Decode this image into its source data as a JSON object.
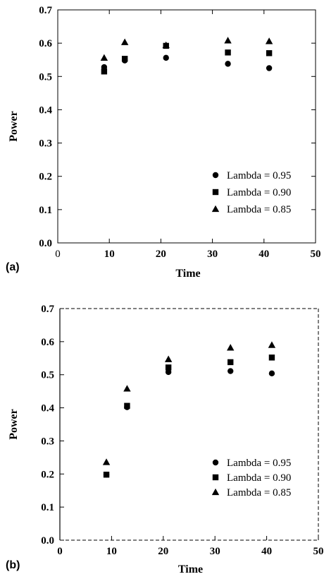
{
  "chart_data": [
    {
      "type": "scatter",
      "panel_label": "(a)",
      "xlabel": "Time",
      "ylabel": "Power",
      "xlim": [
        0,
        50
      ],
      "ylim": [
        0.0,
        0.7
      ],
      "x_ticks": [
        "0",
        "10",
        "20",
        "30",
        "40",
        "50"
      ],
      "y_ticks": [
        "0.0",
        "0.1",
        "0.2",
        "0.3",
        "0.4",
        "0.5",
        "0.6",
        "0.7"
      ],
      "legend_position": "bottom-right",
      "series": [
        {
          "name": "Lambda = 0.95",
          "marker": "circle",
          "x": [
            9,
            13,
            21,
            33,
            41
          ],
          "y": [
            0.528,
            0.548,
            0.556,
            0.538,
            0.525
          ]
        },
        {
          "name": "Lambda = 0.90",
          "marker": "square",
          "x": [
            9,
            13,
            21,
            33,
            41
          ],
          "y": [
            0.515,
            0.553,
            0.592,
            0.572,
            0.57
          ]
        },
        {
          "name": "Lambda = 0.85",
          "marker": "triangle",
          "x": [
            9,
            13,
            21,
            33,
            41
          ],
          "y": [
            0.556,
            0.603,
            0.594,
            0.608,
            0.606
          ]
        }
      ]
    },
    {
      "type": "scatter",
      "panel_label": "(b)",
      "xlabel": "Time",
      "ylabel": "Power",
      "xlim": [
        0,
        50
      ],
      "ylim": [
        0.0,
        0.7
      ],
      "x_ticks": [
        "0",
        "10",
        "20",
        "30",
        "40",
        "50"
      ],
      "y_ticks": [
        "0.0",
        "0.1",
        "0.2",
        "0.3",
        "0.4",
        "0.5",
        "0.6",
        "0.7"
      ],
      "legend_position": "bottom-right",
      "series": [
        {
          "name": "Lambda = 0.95",
          "marker": "circle",
          "x": [
            9,
            13,
            21,
            33,
            41
          ],
          "y": [
            0.198,
            0.402,
            0.508,
            0.511,
            0.504
          ]
        },
        {
          "name": "Lambda = 0.90",
          "marker": "square",
          "x": [
            9,
            13,
            21,
            33,
            41
          ],
          "y": [
            0.198,
            0.406,
            0.522,
            0.538,
            0.552
          ]
        },
        {
          "name": "Lambda = 0.85",
          "marker": "triangle",
          "x": [
            9,
            13,
            21,
            33,
            41
          ],
          "y": [
            0.236,
            0.458,
            0.547,
            0.582,
            0.59
          ]
        }
      ]
    }
  ]
}
